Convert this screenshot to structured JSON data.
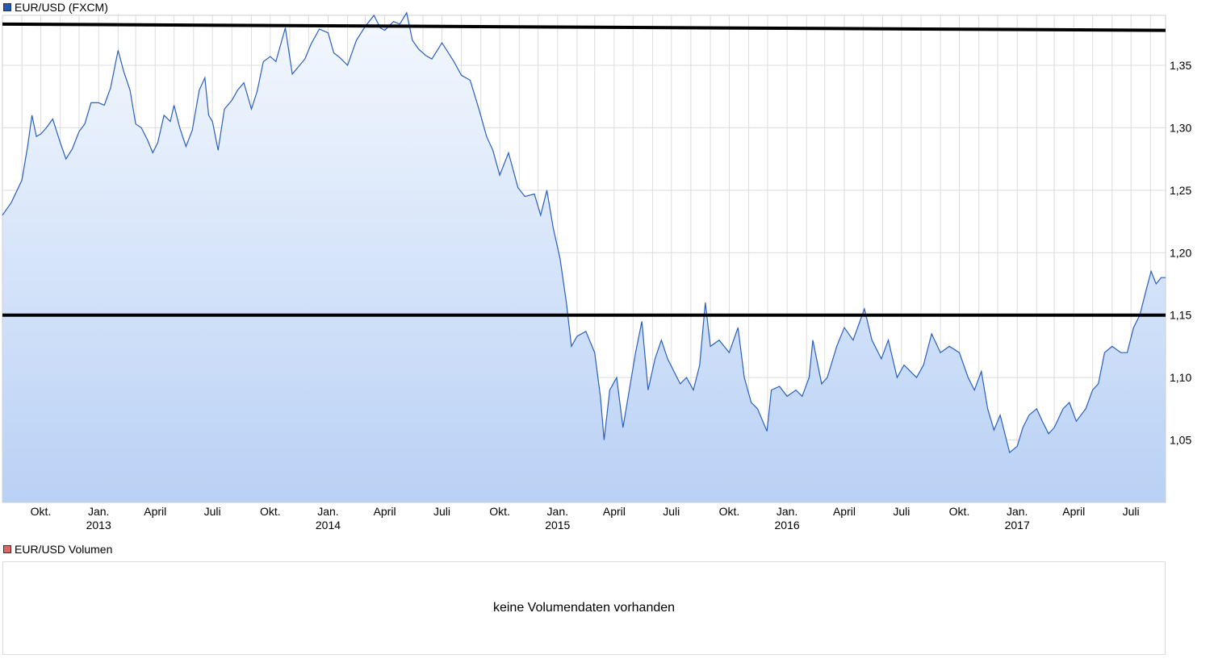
{
  "legend": {
    "price_label": "EUR/USD (FXCM)",
    "price_color": "#1f5bb3",
    "volume_label": "EUR/USD Volumen",
    "volume_color": "#e06666"
  },
  "volume_panel": {
    "message": "keine Volumendaten vorhanden"
  },
  "colors": {
    "line": "#2a5fbf",
    "area_top": "#f4f8fe",
    "area_bottom": "#b9d1f5",
    "grid": "#dcdcdc",
    "resistance": "#000000"
  },
  "chart_data": {
    "type": "line",
    "title": "EUR/USD (FXCM)",
    "xlabel": "",
    "ylabel": "",
    "y_axis_side": "right",
    "ylim": [
      1.0,
      1.39
    ],
    "y_ticks": [
      {
        "value": 1.05,
        "label": "1,05"
      },
      {
        "value": 1.1,
        "label": "1,10"
      },
      {
        "value": 1.15,
        "label": "1,15"
      },
      {
        "value": 1.2,
        "label": "1,20"
      },
      {
        "value": 1.25,
        "label": "1,25"
      },
      {
        "value": 1.3,
        "label": "1,30"
      },
      {
        "value": 1.35,
        "label": "1,35"
      }
    ],
    "xlim": [
      "2012-08-01",
      "2017-08-25"
    ],
    "x_ticks": [
      {
        "date": "2012-10-01",
        "label": "Okt.",
        "year": ""
      },
      {
        "date": "2013-01-01",
        "label": "Jan.",
        "year": "2013"
      },
      {
        "date": "2013-04-01",
        "label": "April",
        "year": ""
      },
      {
        "date": "2013-07-01",
        "label": "Juli",
        "year": ""
      },
      {
        "date": "2013-10-01",
        "label": "Okt.",
        "year": ""
      },
      {
        "date": "2014-01-01",
        "label": "Jan.",
        "year": "2014"
      },
      {
        "date": "2014-04-01",
        "label": "April",
        "year": ""
      },
      {
        "date": "2014-07-01",
        "label": "Juli",
        "year": ""
      },
      {
        "date": "2014-10-01",
        "label": "Okt.",
        "year": ""
      },
      {
        "date": "2015-01-01",
        "label": "Jan.",
        "year": "2015"
      },
      {
        "date": "2015-04-01",
        "label": "April",
        "year": ""
      },
      {
        "date": "2015-07-01",
        "label": "Juli",
        "year": ""
      },
      {
        "date": "2015-10-01",
        "label": "Okt.",
        "year": ""
      },
      {
        "date": "2016-01-01",
        "label": "Jan.",
        "year": "2016"
      },
      {
        "date": "2016-04-01",
        "label": "April",
        "year": ""
      },
      {
        "date": "2016-07-01",
        "label": "Juli",
        "year": ""
      },
      {
        "date": "2016-10-01",
        "label": "Okt.",
        "year": ""
      },
      {
        "date": "2017-01-01",
        "label": "Jan.",
        "year": "2017"
      },
      {
        "date": "2017-04-01",
        "label": "April",
        "year": ""
      },
      {
        "date": "2017-07-01",
        "label": "Juli",
        "year": ""
      }
    ],
    "series": [
      {
        "values": [
          [
            "2012-08-01",
            1.23
          ],
          [
            "2012-08-15",
            1.24
          ],
          [
            "2012-09-01",
            1.258
          ],
          [
            "2012-09-10",
            1.285
          ],
          [
            "2012-09-17",
            1.31
          ],
          [
            "2012-09-24",
            1.293
          ],
          [
            "2012-10-01",
            1.295
          ],
          [
            "2012-10-10",
            1.3
          ],
          [
            "2012-10-20",
            1.307
          ],
          [
            "2012-11-01",
            1.288
          ],
          [
            "2012-11-10",
            1.275
          ],
          [
            "2012-11-20",
            1.283
          ],
          [
            "2012-12-01",
            1.297
          ],
          [
            "2012-12-10",
            1.303
          ],
          [
            "2012-12-20",
            1.32
          ],
          [
            "2013-01-01",
            1.32
          ],
          [
            "2013-01-10",
            1.318
          ],
          [
            "2013-01-20",
            1.332
          ],
          [
            "2013-02-01",
            1.362
          ],
          [
            "2013-02-10",
            1.345
          ],
          [
            "2013-02-20",
            1.33
          ],
          [
            "2013-03-01",
            1.303
          ],
          [
            "2013-03-10",
            1.3
          ],
          [
            "2013-03-20",
            1.29
          ],
          [
            "2013-03-28",
            1.28
          ],
          [
            "2013-04-05",
            1.288
          ],
          [
            "2013-04-15",
            1.31
          ],
          [
            "2013-04-25",
            1.305
          ],
          [
            "2013-05-01",
            1.318
          ],
          [
            "2013-05-10",
            1.3
          ],
          [
            "2013-05-20",
            1.285
          ],
          [
            "2013-05-30",
            1.298
          ],
          [
            "2013-06-10",
            1.33
          ],
          [
            "2013-06-19",
            1.34
          ],
          [
            "2013-06-25",
            1.31
          ],
          [
            "2013-07-01",
            1.305
          ],
          [
            "2013-07-10",
            1.282
          ],
          [
            "2013-07-20",
            1.315
          ],
          [
            "2013-08-01",
            1.322
          ],
          [
            "2013-08-10",
            1.33
          ],
          [
            "2013-08-20",
            1.336
          ],
          [
            "2013-09-01",
            1.315
          ],
          [
            "2013-09-10",
            1.329
          ],
          [
            "2013-09-20",
            1.353
          ],
          [
            "2013-10-01",
            1.357
          ],
          [
            "2013-10-10",
            1.353
          ],
          [
            "2013-10-25",
            1.38
          ],
          [
            "2013-11-05",
            1.343
          ],
          [
            "2013-11-15",
            1.349
          ],
          [
            "2013-11-25",
            1.355
          ],
          [
            "2013-12-05",
            1.367
          ],
          [
            "2013-12-18",
            1.379
          ],
          [
            "2014-01-01",
            1.376
          ],
          [
            "2014-01-10",
            1.36
          ],
          [
            "2014-01-20",
            1.356
          ],
          [
            "2014-02-01",
            1.35
          ],
          [
            "2014-02-15",
            1.37
          ],
          [
            "2014-03-01",
            1.381
          ],
          [
            "2014-03-15",
            1.39
          ],
          [
            "2014-03-25",
            1.38
          ],
          [
            "2014-04-01",
            1.378
          ],
          [
            "2014-04-15",
            1.385
          ],
          [
            "2014-04-25",
            1.383
          ],
          [
            "2014-05-06",
            1.392
          ],
          [
            "2014-05-15",
            1.37
          ],
          [
            "2014-05-25",
            1.363
          ],
          [
            "2014-06-05",
            1.358
          ],
          [
            "2014-06-15",
            1.355
          ],
          [
            "2014-06-25",
            1.363
          ],
          [
            "2014-07-01",
            1.368
          ],
          [
            "2014-07-10",
            1.361
          ],
          [
            "2014-07-20",
            1.353
          ],
          [
            "2014-08-01",
            1.342
          ],
          [
            "2014-08-15",
            1.338
          ],
          [
            "2014-08-30",
            1.313
          ],
          [
            "2014-09-10",
            1.293
          ],
          [
            "2014-09-20",
            1.282
          ],
          [
            "2014-10-01",
            1.262
          ],
          [
            "2014-10-15",
            1.28
          ],
          [
            "2014-10-30",
            1.252
          ],
          [
            "2014-11-10",
            1.245
          ],
          [
            "2014-11-25",
            1.247
          ],
          [
            "2014-12-05",
            1.23
          ],
          [
            "2014-12-15",
            1.25
          ],
          [
            "2014-12-25",
            1.22
          ],
          [
            "2015-01-05",
            1.195
          ],
          [
            "2015-01-15",
            1.16
          ],
          [
            "2015-01-23",
            1.125
          ],
          [
            "2015-02-01",
            1.133
          ],
          [
            "2015-02-15",
            1.137
          ],
          [
            "2015-03-01",
            1.12
          ],
          [
            "2015-03-10",
            1.085
          ],
          [
            "2015-03-16",
            1.05
          ],
          [
            "2015-03-25",
            1.09
          ],
          [
            "2015-04-05",
            1.1
          ],
          [
            "2015-04-15",
            1.06
          ],
          [
            "2015-04-25",
            1.09
          ],
          [
            "2015-05-05",
            1.12
          ],
          [
            "2015-05-15",
            1.145
          ],
          [
            "2015-05-25",
            1.09
          ],
          [
            "2015-06-05",
            1.115
          ],
          [
            "2015-06-15",
            1.13
          ],
          [
            "2015-06-25",
            1.115
          ],
          [
            "2015-07-05",
            1.105
          ],
          [
            "2015-07-15",
            1.095
          ],
          [
            "2015-07-25",
            1.1
          ],
          [
            "2015-08-05",
            1.09
          ],
          [
            "2015-08-15",
            1.11
          ],
          [
            "2015-08-24",
            1.16
          ],
          [
            "2015-09-01",
            1.125
          ],
          [
            "2015-09-15",
            1.13
          ],
          [
            "2015-10-01",
            1.12
          ],
          [
            "2015-10-15",
            1.14
          ],
          [
            "2015-10-25",
            1.1
          ],
          [
            "2015-11-05",
            1.08
          ],
          [
            "2015-11-15",
            1.075
          ],
          [
            "2015-11-30",
            1.057
          ],
          [
            "2015-12-07",
            1.09
          ],
          [
            "2015-12-20",
            1.093
          ],
          [
            "2016-01-01",
            1.085
          ],
          [
            "2016-01-15",
            1.09
          ],
          [
            "2016-01-25",
            1.085
          ],
          [
            "2016-02-05",
            1.1
          ],
          [
            "2016-02-11",
            1.13
          ],
          [
            "2016-02-25",
            1.095
          ],
          [
            "2016-03-05",
            1.1
          ],
          [
            "2016-03-20",
            1.125
          ],
          [
            "2016-04-01",
            1.14
          ],
          [
            "2016-04-15",
            1.13
          ],
          [
            "2016-05-03",
            1.155
          ],
          [
            "2016-05-15",
            1.13
          ],
          [
            "2016-05-30",
            1.115
          ],
          [
            "2016-06-10",
            1.13
          ],
          [
            "2016-06-24",
            1.1
          ],
          [
            "2016-07-05",
            1.11
          ],
          [
            "2016-07-15",
            1.105
          ],
          [
            "2016-07-25",
            1.1
          ],
          [
            "2016-08-05",
            1.11
          ],
          [
            "2016-08-18",
            1.135
          ],
          [
            "2016-09-01",
            1.12
          ],
          [
            "2016-09-15",
            1.125
          ],
          [
            "2016-10-01",
            1.12
          ],
          [
            "2016-10-15",
            1.1
          ],
          [
            "2016-10-25",
            1.09
          ],
          [
            "2016-11-05",
            1.105
          ],
          [
            "2016-11-15",
            1.075
          ],
          [
            "2016-11-25",
            1.058
          ],
          [
            "2016-12-05",
            1.07
          ],
          [
            "2016-12-20",
            1.04
          ],
          [
            "2017-01-01",
            1.045
          ],
          [
            "2017-01-10",
            1.06
          ],
          [
            "2017-01-20",
            1.07
          ],
          [
            "2017-02-01",
            1.075
          ],
          [
            "2017-02-10",
            1.065
          ],
          [
            "2017-02-20",
            1.055
          ],
          [
            "2017-03-01",
            1.06
          ],
          [
            "2017-03-15",
            1.075
          ],
          [
            "2017-03-25",
            1.08
          ],
          [
            "2017-04-05",
            1.065
          ],
          [
            "2017-04-20",
            1.075
          ],
          [
            "2017-05-01",
            1.09
          ],
          [
            "2017-05-10",
            1.095
          ],
          [
            "2017-05-20",
            1.12
          ],
          [
            "2017-06-01",
            1.125
          ],
          [
            "2017-06-15",
            1.12
          ],
          [
            "2017-06-25",
            1.12
          ],
          [
            "2017-07-05",
            1.14
          ],
          [
            "2017-07-15",
            1.15
          ],
          [
            "2017-07-25",
            1.17
          ],
          [
            "2017-08-02",
            1.185
          ],
          [
            "2017-08-10",
            1.175
          ],
          [
            "2017-08-18",
            1.18
          ],
          [
            "2017-08-25",
            1.18
          ]
        ]
      }
    ],
    "horizontal_lines": [
      {
        "name": "resistance-line",
        "start": "2012-08-01",
        "end": "2017-08-25",
        "from": 1.383,
        "to": 1.378
      },
      {
        "name": "support-line",
        "start": "2012-08-01",
        "end": "2017-08-25",
        "from": 1.15,
        "to": 1.15
      }
    ],
    "grid": true,
    "legend": "top-left"
  }
}
